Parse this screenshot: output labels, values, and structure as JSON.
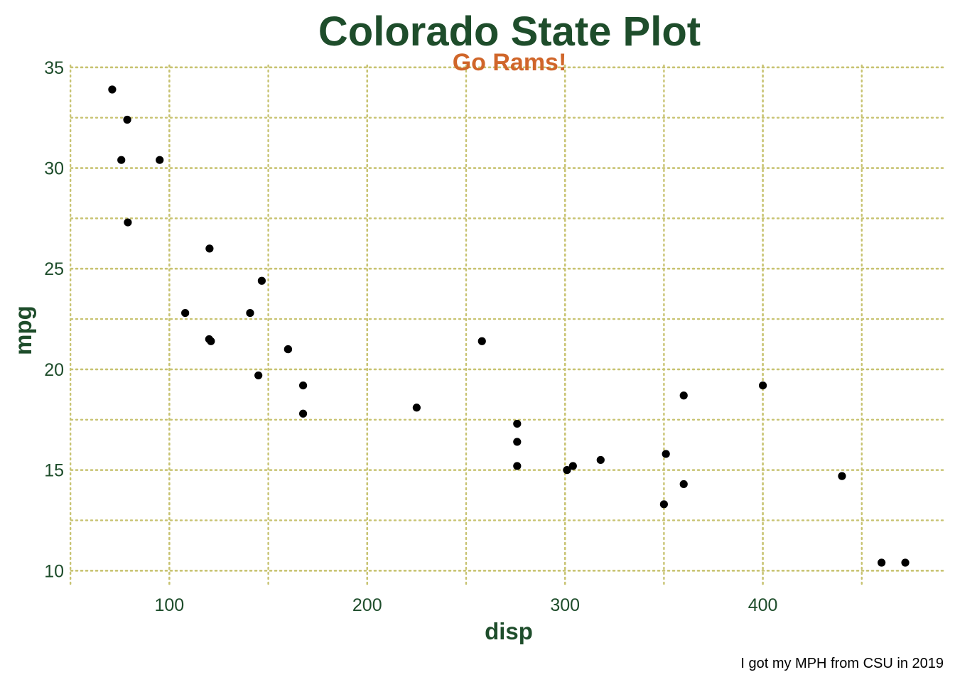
{
  "colors": {
    "primary_green": "#1E4D2B",
    "accent_orange": "#D0662A",
    "grid_gold": "#C8C372",
    "point": "#000000",
    "caption_text": "#000000"
  },
  "chart_data": {
    "type": "scatter",
    "title": "Colorado State Plot",
    "subtitle": "Go Rams!",
    "xlabel": "disp",
    "ylabel": "mpg",
    "caption": "I got my MPH from CSU in 2019",
    "xlim": [
      50.3,
      492.1
    ],
    "ylim": [
      9.2,
      35.1
    ],
    "x_ticks": [
      100,
      200,
      300,
      400
    ],
    "x_tick_labels": [
      "100",
      "200",
      "300",
      "400"
    ],
    "y_ticks": [
      10,
      15,
      20,
      25,
      30,
      35
    ],
    "y_tick_labels": [
      "10",
      "15",
      "20",
      "25",
      "30",
      "35"
    ],
    "x_minor_grid": [
      50,
      150,
      250,
      350,
      450
    ],
    "y_minor_grid": [
      12.5,
      17.5,
      22.5,
      27.5,
      32.5
    ],
    "grid": true,
    "grid_style": "dotted",
    "legend": "none",
    "points": [
      {
        "x": 160,
        "y": 21
      },
      {
        "x": 160,
        "y": 21
      },
      {
        "x": 108,
        "y": 22.8
      },
      {
        "x": 258,
        "y": 21.4
      },
      {
        "x": 360,
        "y": 18.7
      },
      {
        "x": 225,
        "y": 18.1
      },
      {
        "x": 360,
        "y": 14.3
      },
      {
        "x": 146.7,
        "y": 24.4
      },
      {
        "x": 140.8,
        "y": 22.8
      },
      {
        "x": 167.6,
        "y": 19.2
      },
      {
        "x": 167.6,
        "y": 17.8
      },
      {
        "x": 275.8,
        "y": 16.4
      },
      {
        "x": 275.8,
        "y": 17.3
      },
      {
        "x": 275.8,
        "y": 15.2
      },
      {
        "x": 472,
        "y": 10.4
      },
      {
        "x": 460,
        "y": 10.4
      },
      {
        "x": 440,
        "y": 14.7
      },
      {
        "x": 78.7,
        "y": 32.4
      },
      {
        "x": 75.7,
        "y": 30.4
      },
      {
        "x": 71.1,
        "y": 33.9
      },
      {
        "x": 120.1,
        "y": 21.5
      },
      {
        "x": 318,
        "y": 15.5
      },
      {
        "x": 304,
        "y": 15.2
      },
      {
        "x": 350,
        "y": 13.3
      },
      {
        "x": 400,
        "y": 19.2
      },
      {
        "x": 79,
        "y": 27.3
      },
      {
        "x": 120.3,
        "y": 26
      },
      {
        "x": 95.1,
        "y": 30.4
      },
      {
        "x": 351,
        "y": 15.8
      },
      {
        "x": 145,
        "y": 19.7
      },
      {
        "x": 301,
        "y": 15
      },
      {
        "x": 121,
        "y": 21.4
      }
    ]
  }
}
